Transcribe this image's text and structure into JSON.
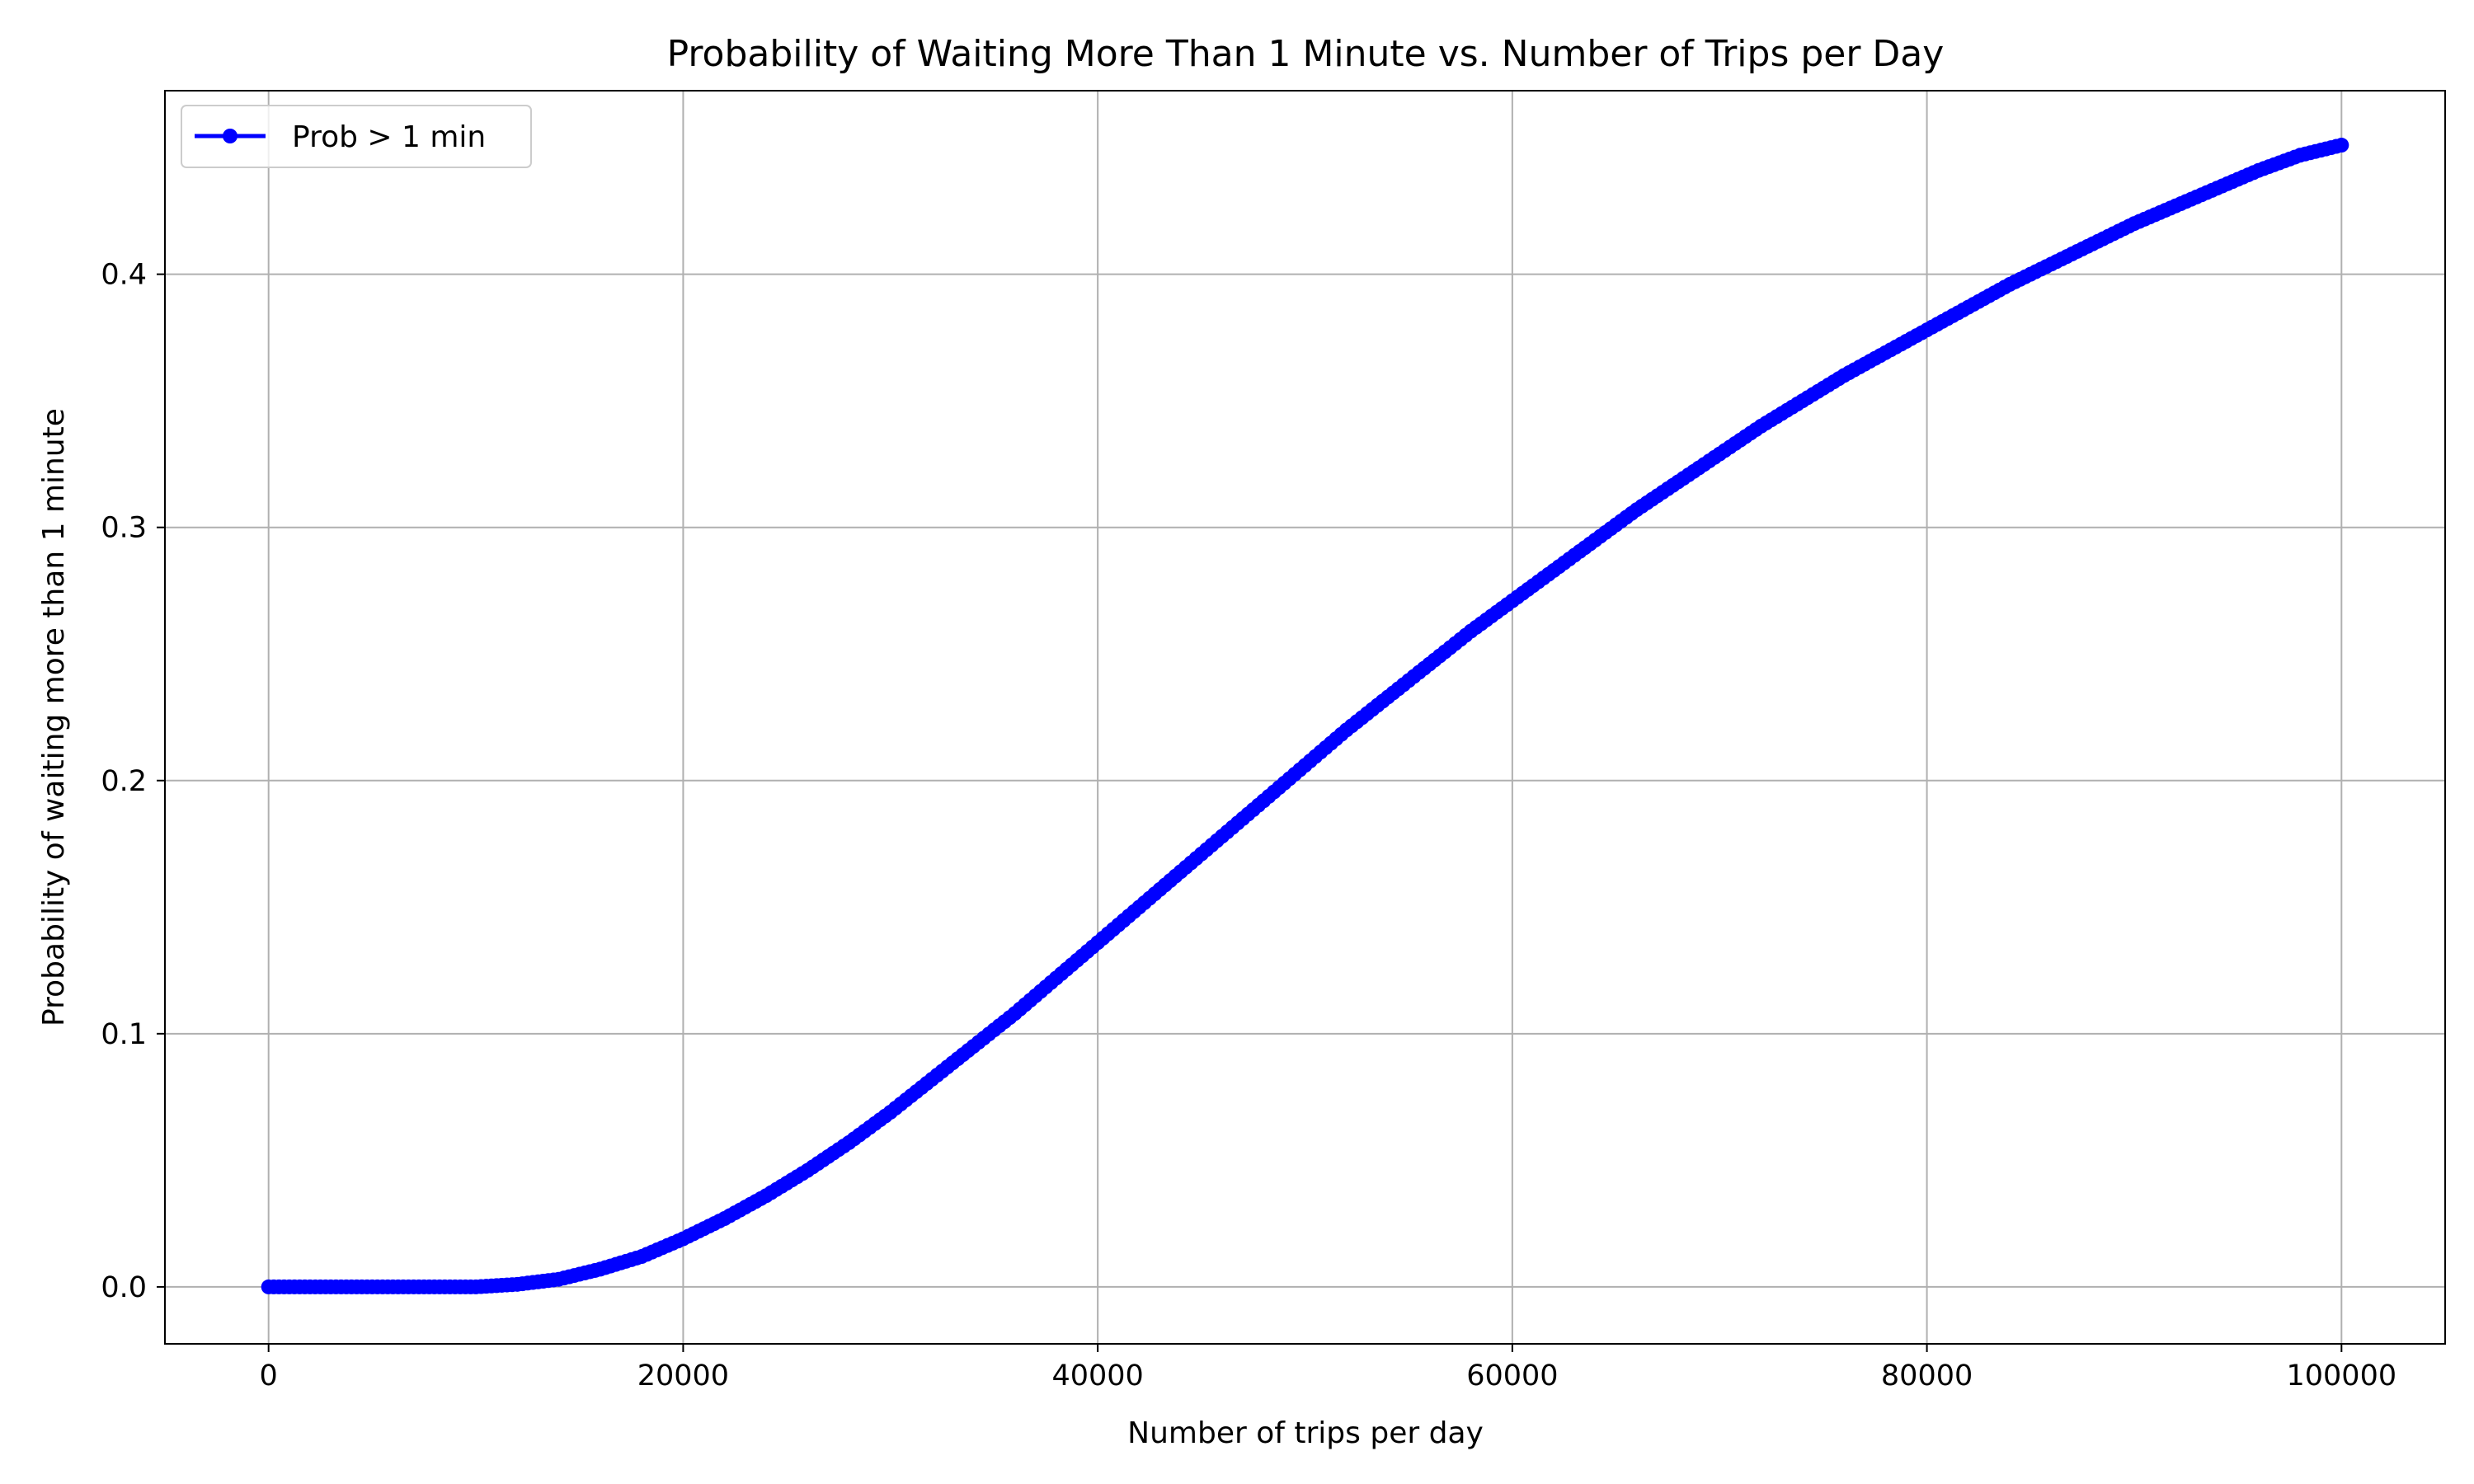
{
  "chart_data": {
    "type": "line",
    "title": "Probability of Waiting More Than 1 Minute vs. Number of Trips per Day",
    "xlabel": "Number of trips per day",
    "ylabel": "Probability of waiting more than 1 minute",
    "xlim": [
      -5000,
      105000
    ],
    "ylim": [
      -0.0225,
      0.4725
    ],
    "xticks": [
      0,
      20000,
      40000,
      60000,
      80000,
      100000
    ],
    "xtick_labels": [
      "0",
      "20000",
      "40000",
      "60000",
      "80000",
      "100000"
    ],
    "yticks": [
      0.0,
      0.1,
      0.2,
      0.3,
      0.4
    ],
    "ytick_labels": [
      "0.0",
      "0.1",
      "0.2",
      "0.3",
      "0.4"
    ],
    "grid": true,
    "legend_position": "top-left",
    "series": [
      {
        "name": "Prob > 1 min",
        "color": "#0000ff",
        "marker": "circle",
        "x": [
          0,
          5000,
          10000,
          12000,
          14000,
          16000,
          18000,
          20000,
          22000,
          24000,
          26000,
          28000,
          30000,
          32000,
          34000,
          36000,
          38000,
          40000,
          42000,
          44000,
          46000,
          48000,
          50000,
          52000,
          54000,
          56000,
          58000,
          60000,
          62000,
          64000,
          66000,
          68000,
          70000,
          72000,
          74000,
          76000,
          78000,
          80000,
          82000,
          84000,
          86000,
          88000,
          90000,
          92000,
          94000,
          96000,
          98000,
          100000
        ],
        "y": [
          0.0,
          0.0,
          0.0,
          0.001,
          0.003,
          0.007,
          0.012,
          0.019,
          0.027,
          0.036,
          0.046,
          0.057,
          0.069,
          0.082,
          0.095,
          0.108,
          0.122,
          0.136,
          0.15,
          0.164,
          0.178,
          0.192,
          0.206,
          0.22,
          0.233,
          0.246,
          0.259,
          0.271,
          0.283,
          0.295,
          0.307,
          0.318,
          0.329,
          0.34,
          0.35,
          0.36,
          0.369,
          0.378,
          0.387,
          0.396,
          0.404,
          0.412,
          0.42,
          0.427,
          0.434,
          0.441,
          0.447,
          0.451
        ]
      }
    ]
  }
}
